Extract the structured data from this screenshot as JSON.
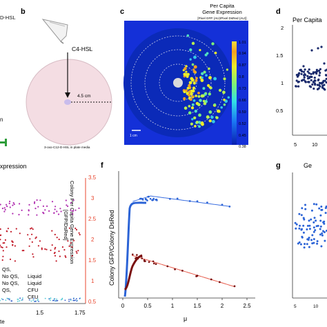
{
  "panels": {
    "b": {
      "label": "b",
      "inducer_label": "C4-HSL",
      "distance_label": "4.5 cm",
      "plate_caption": "3-oxo-C12-D-HSL in plate media",
      "edge_text": "D-HSL",
      "left_stub": "n"
    },
    "c": {
      "label": "c",
      "title_lines": [
        "Per Capita",
        "Gene Expression"
      ],
      "subtitle": "[Pixel GFP (AU)/Pixel DsRed (AU)]",
      "scalebar_label": "1 cm",
      "colorbar_ticks": [
        "1.01",
        "0.94",
        "0.87",
        "0.8",
        "0.73",
        "0.66",
        "0.59",
        "0.52",
        "0.45",
        "0.38"
      ],
      "colors": {
        "background": "#1430d8",
        "plate": "#0b2ab8",
        "center": "#dadada",
        "ring": "#c8cbe6"
      }
    },
    "d": {
      "label": "d",
      "title": "Per Capita",
      "y_ticks": [
        "2",
        "1.5",
        "1",
        "0.5"
      ],
      "x_ticks": [
        "5",
        "10"
      ]
    },
    "e": {
      "title_fragment": "xpression",
      "right_axis_label_lines": [
        "Colony Per Capita Gene Expression",
        "[GFP/DsRed]"
      ],
      "right_ticks": [
        "3.5",
        "3",
        "2.5",
        "2",
        "1.5",
        "1",
        "0.5"
      ],
      "x_ticks": [
        "1.5",
        "1.75"
      ],
      "x_label_fragment": "te",
      "legend_left": [
        "No QS,",
        "No QS,",
        "QS,"
      ],
      "legend_right": [
        "Liquid",
        "Liquid",
        "CFU",
        "CFU"
      ],
      "legend_top": "QS,",
      "colors": {
        "axis": "#e8442c",
        "magenta": "#b12fb0",
        "red": "#c31c2a",
        "cyan": "#4cc8d4",
        "blue": "#2b57c8"
      }
    },
    "f": {
      "label": "f",
      "y_label": "Colony GFP/Colony DsRed",
      "x_label": "μ",
      "x_ticks": [
        "0",
        "0.5",
        "1",
        "1.5",
        "2",
        "2.5"
      ],
      "colors": {
        "blue": "#2b63d6",
        "red": "#7a1010",
        "fit_blue": "#3a6ee0",
        "fit_red": "#e65a4a"
      }
    },
    "g": {
      "label": "g",
      "title_fragment": "Ge",
      "x_ticks": [
        "5",
        "10"
      ]
    }
  }
}
